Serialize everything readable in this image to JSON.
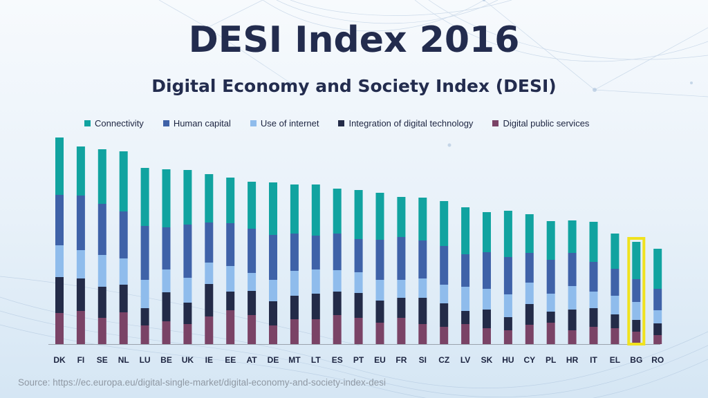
{
  "header": {
    "title": "DESI Index 2016",
    "subtitle": "Digital Economy and Society Index (DESI)"
  },
  "source": "Source: https://ec.europa.eu/digital-single-market/digital-economy-and-society-index-desi",
  "colors": {
    "Connectivity": "#11a3a0",
    "Human capital": "#3f62a8",
    "Use of internet": "#8fbcec",
    "Integration of digital technology": "#232b48",
    "Digital public services": "#7a4366",
    "highlight": "#f0e21e",
    "axis": "#9aa3ad",
    "text": "#1c2440"
  },
  "chart_data": {
    "type": "bar",
    "stacked": true,
    "grid": false,
    "legend_position": "top",
    "highlight_category": "BG",
    "categories": [
      "DK",
      "FI",
      "SE",
      "NL",
      "LU",
      "BE",
      "UK",
      "IE",
      "EE",
      "AT",
      "DE",
      "MT",
      "LT",
      "ES",
      "PT",
      "EU",
      "FR",
      "SI",
      "CZ",
      "LV",
      "SK",
      "HU",
      "CY",
      "PL",
      "HR",
      "IT",
      "EL",
      "BG",
      "RO"
    ],
    "series": [
      {
        "name": "Digital public services",
        "values": [
          45,
          48,
          38,
          46,
          27,
          33,
          29,
          40,
          49,
          42,
          27,
          36,
          36,
          42,
          38,
          31,
          38,
          29,
          25,
          29,
          23,
          20,
          28,
          31,
          20,
          25,
          23,
          18,
          13
        ]
      },
      {
        "name": "Integration of digital technology",
        "values": [
          52,
          47,
          45,
          40,
          25,
          42,
          31,
          47,
          27,
          35,
          35,
          34,
          37,
          34,
          36,
          32,
          29,
          38,
          34,
          19,
          27,
          19,
          30,
          16,
          30,
          27,
          20,
          17,
          17
        ]
      },
      {
        "name": "Use of internet",
        "values": [
          46,
          41,
          46,
          38,
          41,
          33,
          36,
          31,
          37,
          26,
          31,
          36,
          35,
          31,
          30,
          30,
          26,
          28,
          27,
          35,
          30,
          33,
          31,
          26,
          34,
          24,
          27,
          26,
          19
        ]
      },
      {
        "name": "Human capital",
        "values": [
          73,
          79,
          74,
          68,
          78,
          61,
          77,
          58,
          62,
          64,
          65,
          54,
          49,
          53,
          48,
          58,
          62,
          55,
          56,
          47,
          53,
          54,
          43,
          49,
          48,
          43,
          39,
          33,
          31
        ]
      },
      {
        "name": "Connectivity",
        "values": [
          83,
          71,
          79,
          87,
          84,
          84,
          79,
          70,
          66,
          68,
          76,
          71,
          74,
          65,
          71,
          68,
          58,
          62,
          65,
          68,
          58,
          67,
          56,
          56,
          47,
          58,
          51,
          54,
          58
        ]
      }
    ]
  }
}
